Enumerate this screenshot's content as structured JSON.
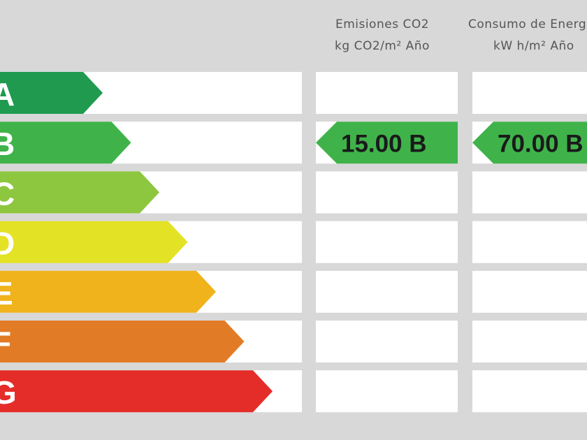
{
  "columns": [
    {
      "title": "Emisiones CO2",
      "unit": "kg CO2/m² Año",
      "rating": "15.00 B"
    },
    {
      "title": "Consumo de Energía",
      "unit": "kW h/m² Año",
      "rating": "70.00 B"
    }
  ],
  "scale": [
    {
      "label": "A",
      "color": "#1f9a4f"
    },
    {
      "label": "B",
      "color": "#3fb34a"
    },
    {
      "label": "C",
      "color": "#8dc63f"
    },
    {
      "label": "D",
      "color": "#e4e225"
    },
    {
      "label": "E",
      "color": "#f0b31c"
    },
    {
      "label": "F",
      "color": "#e27b26"
    },
    {
      "label": "G",
      "color": "#e42d29"
    }
  ],
  "rating_row": 1
}
